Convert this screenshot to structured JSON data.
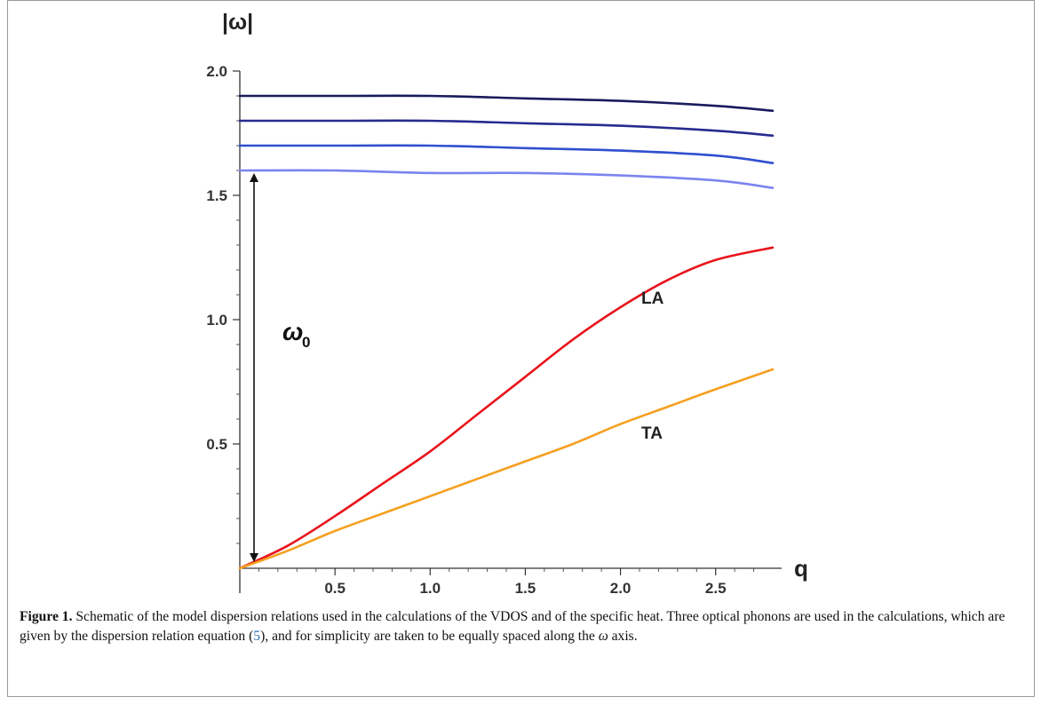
{
  "chart_data": {
    "type": "line",
    "ylabel": "|ω|",
    "xlabel": "q",
    "xlim": [
      0,
      2.8
    ],
    "ylim": [
      0,
      2.0
    ],
    "x_ticks": [
      0.5,
      1.0,
      1.5,
      2.0,
      2.5
    ],
    "x_tick_labels": [
      "0.5",
      "1.0",
      "1.5",
      "2.0",
      "2.5"
    ],
    "y_ticks": [
      0.5,
      1.0,
      1.5,
      2.0
    ],
    "y_tick_labels": [
      "0.5",
      "1.0",
      "1.5",
      "2.0"
    ],
    "grid": false,
    "series": [
      {
        "color": "#1a1a5e",
        "x": [
          0,
          0.5,
          1.0,
          1.5,
          2.0,
          2.5,
          2.8
        ],
        "y": [
          1.9,
          1.9,
          1.9,
          1.89,
          1.88,
          1.86,
          1.84
        ]
      },
      {
        "color": "#262b8f",
        "x": [
          0,
          0.5,
          1.0,
          1.5,
          2.0,
          2.5,
          2.8
        ],
        "y": [
          1.8,
          1.8,
          1.8,
          1.79,
          1.78,
          1.76,
          1.74
        ]
      },
      {
        "color": "#2f4fcf",
        "x": [
          0,
          0.5,
          1.0,
          1.5,
          2.0,
          2.5,
          2.8
        ],
        "y": [
          1.7,
          1.7,
          1.7,
          1.69,
          1.68,
          1.66,
          1.63
        ]
      },
      {
        "color": "#7b84ee",
        "x": [
          0,
          0.5,
          1.0,
          1.5,
          2.0,
          2.5,
          2.8
        ],
        "y": [
          1.6,
          1.6,
          1.59,
          1.59,
          1.58,
          1.56,
          1.53
        ]
      },
      {
        "name": "LA",
        "color": "#e8141c",
        "x": [
          0,
          0.25,
          0.5,
          0.75,
          1.0,
          1.25,
          1.5,
          1.75,
          2.0,
          2.25,
          2.5,
          2.8
        ],
        "y": [
          0,
          0.09,
          0.21,
          0.34,
          0.47,
          0.62,
          0.77,
          0.92,
          1.05,
          1.16,
          1.24,
          1.29
        ]
      },
      {
        "name": "TA",
        "color": "#f5a020",
        "x": [
          0,
          0.25,
          0.5,
          0.75,
          1.0,
          1.25,
          1.5,
          1.75,
          2.0,
          2.25,
          2.5,
          2.8
        ],
        "y": [
          0,
          0.07,
          0.15,
          0.22,
          0.29,
          0.36,
          0.43,
          0.5,
          0.58,
          0.65,
          0.72,
          0.8
        ]
      }
    ],
    "annotations": {
      "LA_label": "LA",
      "TA_label": "TA",
      "omega0_main": "ω",
      "omega0_sub": "0",
      "arrow_y_range": [
        0,
        1.6
      ]
    }
  },
  "caption": {
    "label": "Figure 1.",
    "text_before_ref": " Schematic of the model dispersion relations used in the calculations of the VDOS and of the specific heat. Three optical phonons are used in the calculations, which are given by the dispersion relation equation (",
    "ref": "5",
    "text_after_ref": "), and for simplicity are taken to be equally spaced along the ",
    "omega": "ω",
    "text_end": " axis."
  }
}
